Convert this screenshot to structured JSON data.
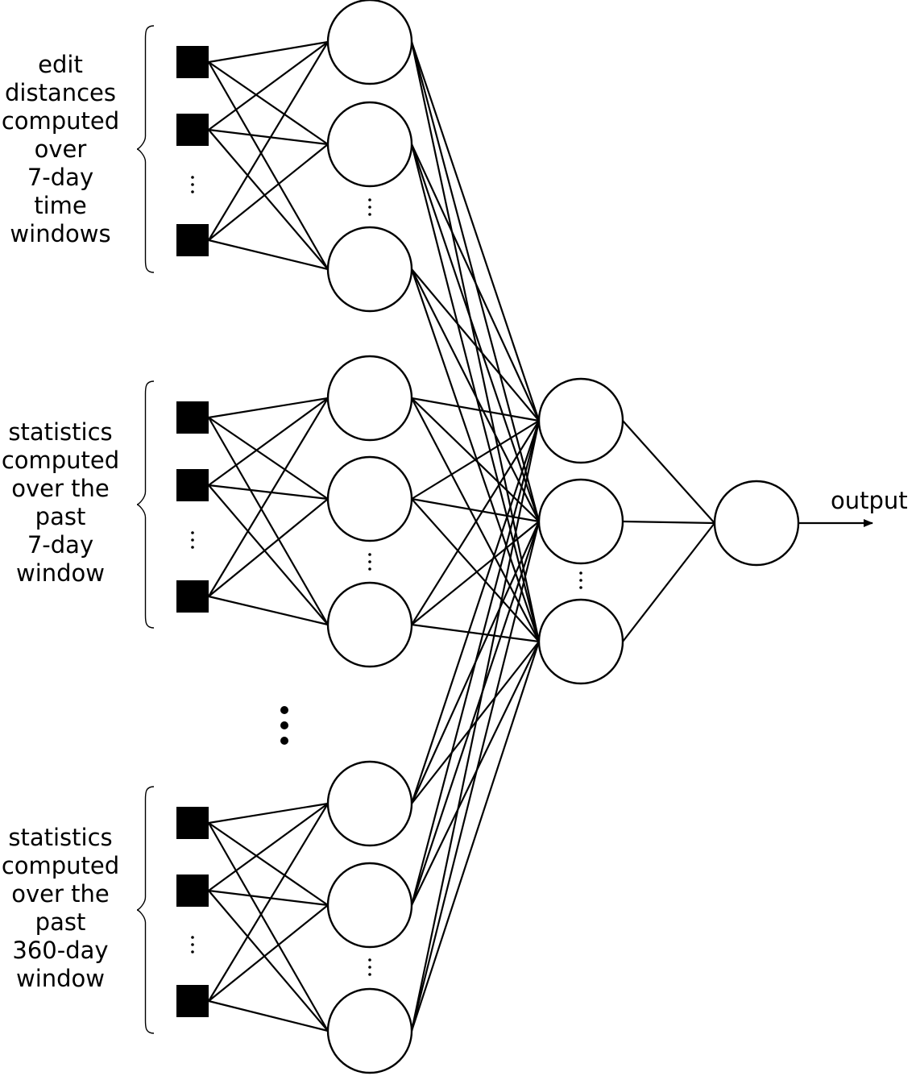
{
  "groups": [
    {
      "label_lines": [
        "edit",
        "distances",
        "computed",
        "over",
        "7-day",
        "time",
        "windows"
      ]
    },
    {
      "label_lines": [
        "statistics",
        "computed",
        "over the",
        "past",
        "7-day",
        "window"
      ]
    },
    {
      "label_lines": [
        "statistics",
        "computed",
        "over the",
        "past",
        "360-day",
        "window"
      ]
    }
  ],
  "output_label": "output",
  "colors": {
    "stroke": "#000000",
    "background": "#ffffff",
    "input_node_fill": "#000000",
    "hidden_node_fill": "#ffffff"
  }
}
